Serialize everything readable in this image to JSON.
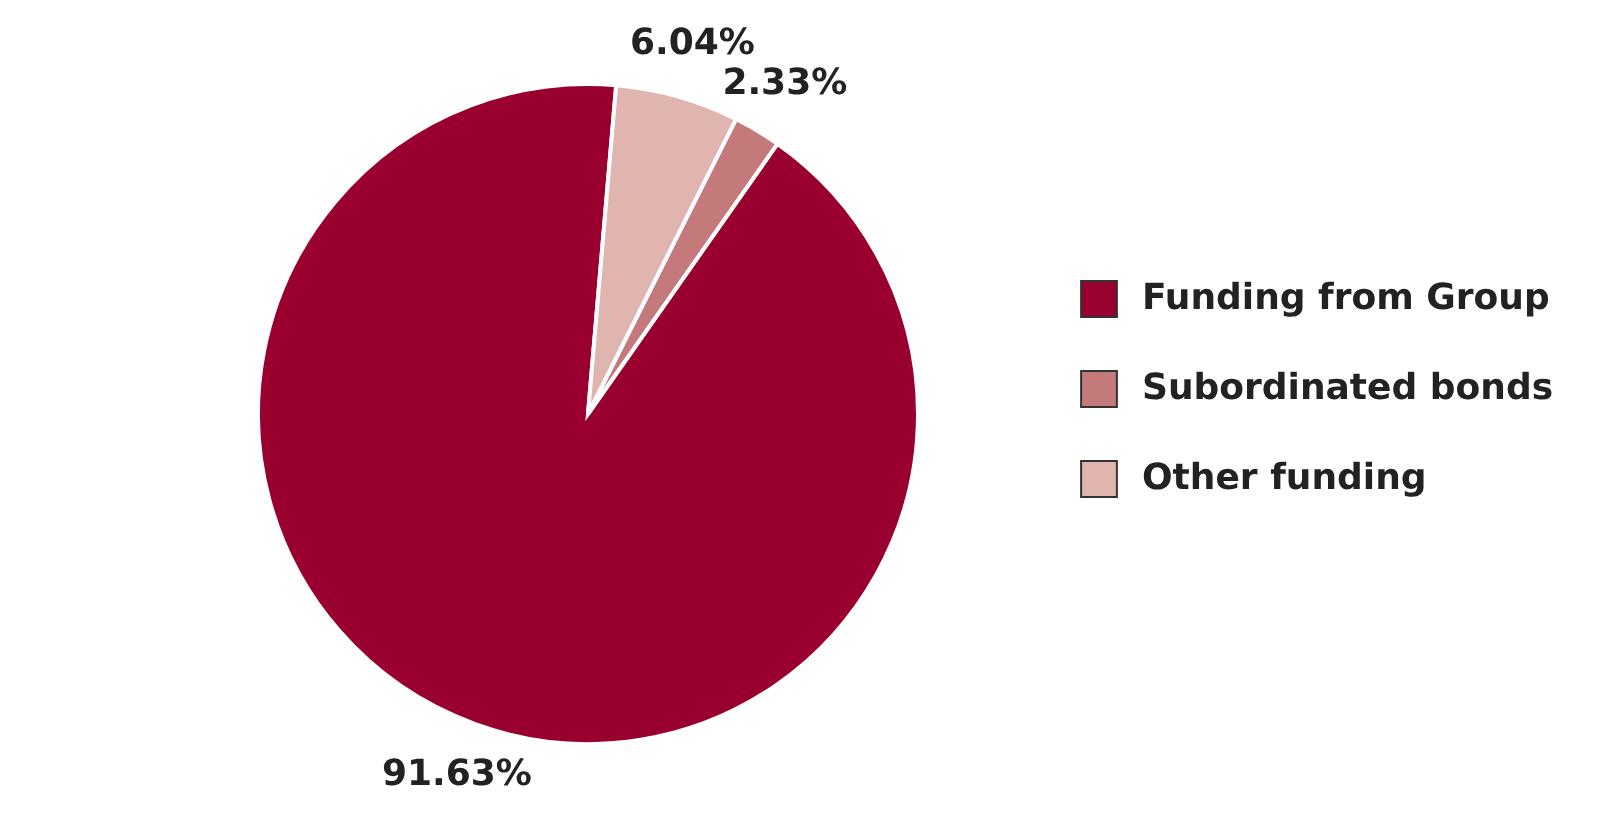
{
  "chart_data": {
    "type": "pie",
    "categories": [
      "Funding from Group",
      "Subordinated bonds",
      "Other funding"
    ],
    "values": [
      91.63,
      2.33,
      6.04
    ],
    "colors": [
      "#990030",
      "#c47a7a",
      "#e0b5b0"
    ],
    "value_labels": [
      "91.63%",
      "2.33%",
      "6.04%"
    ],
    "legend": "right"
  }
}
